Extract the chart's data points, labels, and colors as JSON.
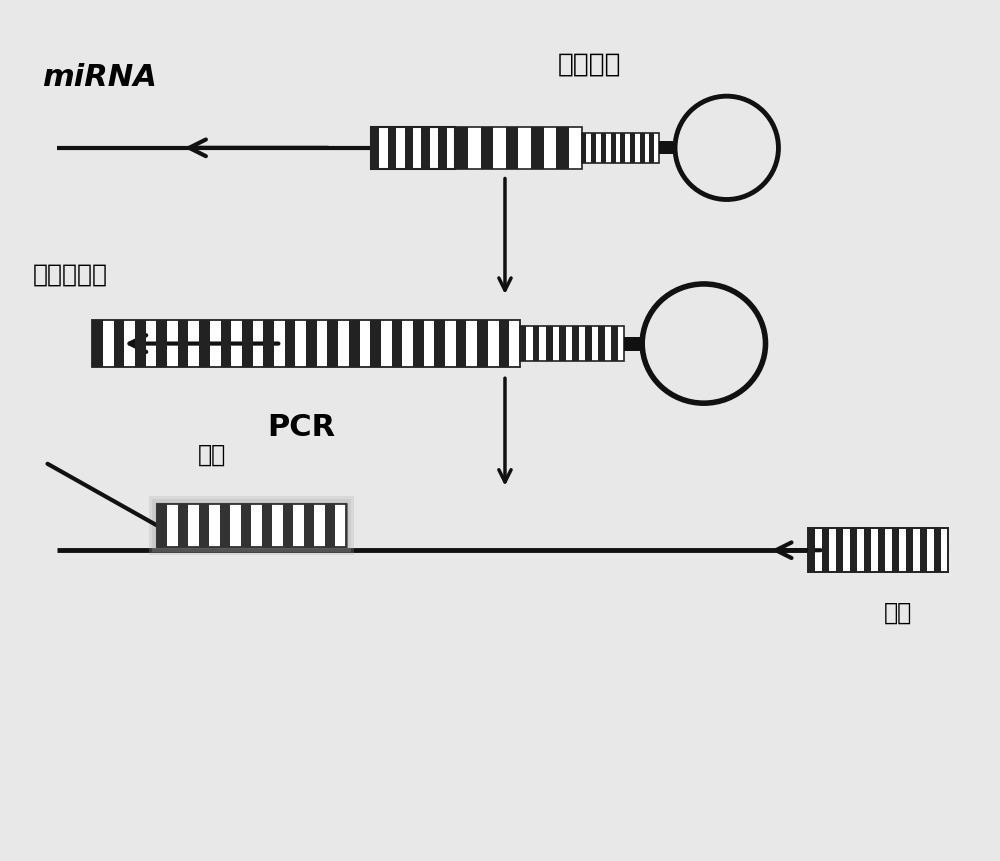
{
  "bg_color": "#e8e8e8",
  "title_mirna": "miRNA",
  "title_stem_loop_primer": "茎环引物",
  "title_stem_loop_rt": "茎环反转录",
  "title_pcr": "PCR",
  "title_upstream": "上游",
  "title_downstream": "下游",
  "dark_color": "#111111",
  "stripe_color": "#222222",
  "arrow_color": "#111111"
}
